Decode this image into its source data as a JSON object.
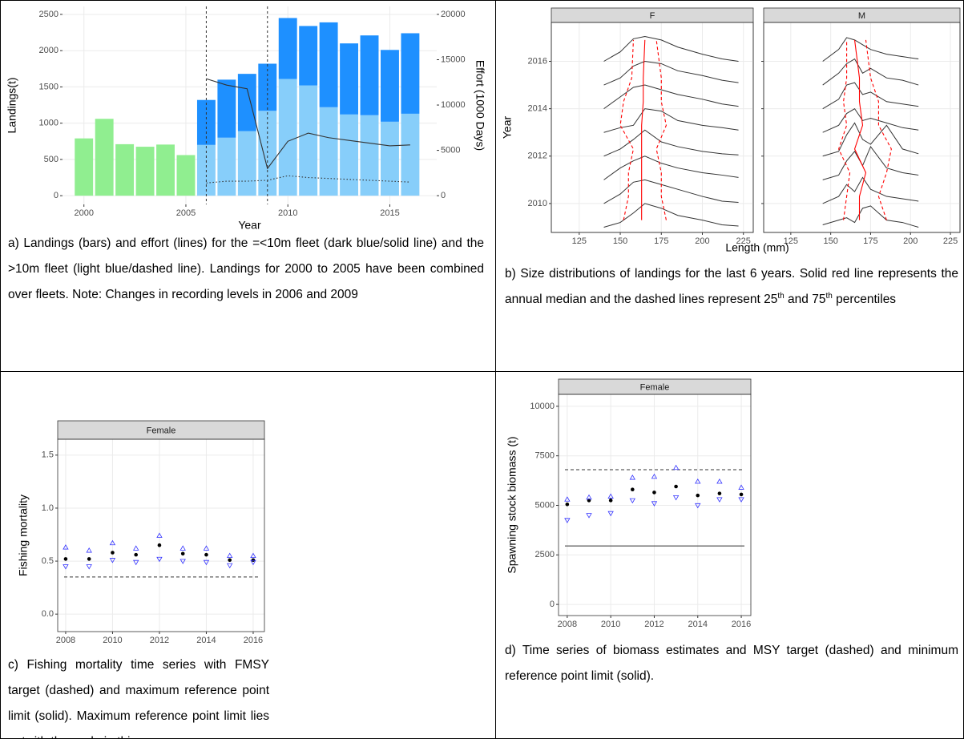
{
  "chart_data": [
    {
      "type": "combo",
      "x": [
        2000,
        2001,
        2002,
        2003,
        2004,
        2005,
        2006,
        2007,
        2008,
        2009,
        2010,
        2011,
        2012,
        2013,
        2014,
        2015,
        2016
      ],
      "xlim": [
        1998.95,
        2017.3
      ],
      "xticks": [
        2000,
        2005,
        2010,
        2015
      ],
      "ylim": [
        -120,
        2610
      ],
      "yticks": [
        0,
        500,
        1000,
        1500,
        2000,
        2500
      ],
      "y2lim": [
        -960,
        20880
      ],
      "y2ticks": [
        0,
        5000,
        10000,
        15000,
        20000
      ],
      "xlabel": "Year",
      "ylabel": "Landings(t)",
      "y2label": "Effort (1000 Days)",
      "grid": true,
      "vlines": [
        2006,
        2009
      ],
      "series": [
        {
          "type": "bar",
          "color": "#90ee90",
          "values": [
            790,
            1060,
            710,
            675,
            705,
            560,
            null,
            null,
            null,
            null,
            null,
            null,
            null,
            null,
            null,
            null,
            null
          ]
        },
        {
          "type": "bar",
          "color": "#87cefa",
          "values": [
            null,
            null,
            null,
            null,
            null,
            null,
            700,
            800,
            890,
            1170,
            1610,
            1520,
            1220,
            1120,
            1110,
            1020,
            1130
          ]
        },
        {
          "type": "bar",
          "color": "#1e90ff",
          "values": [
            null,
            null,
            null,
            null,
            null,
            null,
            620,
            800,
            790,
            650,
            840,
            820,
            1170,
            980,
            1100,
            990,
            1110
          ]
        },
        {
          "type": "line",
          "axis": "y2",
          "color": "#333333",
          "dash": "solid",
          "values": [
            null,
            null,
            null,
            null,
            null,
            null,
            12900,
            12200,
            11800,
            3000,
            6000,
            6900,
            6400,
            6100,
            5800,
            5500,
            5600
          ]
        },
        {
          "type": "line",
          "axis": "y2",
          "color": "#333333",
          "dash": "dotted",
          "values": [
            null,
            null,
            null,
            null,
            null,
            null,
            1400,
            1600,
            1600,
            1700,
            2200,
            2000,
            1900,
            1800,
            1700,
            1600,
            1500
          ]
        }
      ]
    },
    {
      "type": "ridgeline",
      "ylim": [
        2008.78,
        2017.64
      ],
      "yticks": [
        2010,
        2012,
        2014,
        2016
      ],
      "ylabel": "Year",
      "xlabel": "Length (mm)",
      "xlim": [
        108,
        231
      ],
      "grid": true,
      "facets": [
        {
          "label": "F",
          "xticks": [
            125,
            150,
            175,
            200,
            225
          ],
          "color": "#333333",
          "x": [
            140,
            150,
            158,
            165,
            175,
            185,
            200,
            212,
            222
          ],
          "series": [
            {
              "values": [
                2009.0,
                2009.2,
                2009.6,
                2010.0,
                2009.8,
                2009.5,
                2009.3,
                2009.1,
                2009.05
              ]
            },
            {
              "values": [
                2010.0,
                2010.4,
                2010.9,
                2011.0,
                2010.8,
                2010.6,
                2010.3,
                2010.1,
                2010.05
              ]
            },
            {
              "values": [
                2011.0,
                2011.5,
                2011.8,
                2012.0,
                2011.7,
                2011.5,
                2011.3,
                2011.2,
                2011.1
              ]
            },
            {
              "values": [
                2012.0,
                2012.3,
                2012.7,
                2013.1,
                2012.6,
                2012.4,
                2012.2,
                2012.1,
                2012.05
              ]
            },
            {
              "values": [
                2013.0,
                2013.2,
                2013.3,
                2014.0,
                2013.9,
                2013.5,
                2013.3,
                2013.2,
                2013.1
              ]
            },
            {
              "values": [
                2014.0,
                2014.5,
                2014.9,
                2015.0,
                2014.8,
                2014.6,
                2014.4,
                2014.2,
                2014.1
              ]
            },
            {
              "values": [
                2015.0,
                2015.3,
                2015.8,
                2016.0,
                2015.9,
                2015.6,
                2015.4,
                2015.2,
                2015.1
              ]
            },
            {
              "values": [
                2016.0,
                2016.4,
                2016.95,
                2017.05,
                2016.9,
                2016.6,
                2016.3,
                2016.1,
                2016.0
              ]
            }
          ],
          "ref_lines": [
            {
              "color": "#ff0000",
              "dash": "solid",
              "x": [
                163,
                163,
                163,
                163,
                163,
                164,
                164,
                165
              ],
              "values": [
                2009.3,
                2010.3,
                2011.3,
                2012.3,
                2013.3,
                2014.3,
                2015.3,
                2016.9
              ]
            },
            {
              "color": "#ff0000",
              "dash": "dashed",
              "x": [
                152,
                155,
                155,
                158,
                150,
                152,
                157,
                158
              ],
              "values": [
                2009.3,
                2010.3,
                2011.3,
                2012.3,
                2013.3,
                2014.3,
                2015.3,
                2016.9
              ]
            },
            {
              "color": "#ff0000",
              "dash": "dashed",
              "x": [
                178,
                175,
                175,
                172,
                178,
                175,
                175,
                172
              ],
              "values": [
                2009.3,
                2010.3,
                2011.3,
                2012.3,
                2013.3,
                2014.3,
                2015.3,
                2016.9
              ]
            }
          ]
        },
        {
          "label": "M",
          "xticks": [
            125,
            150,
            175,
            200,
            225
          ],
          "color": "#333333",
          "x": [
            145,
            155,
            160,
            165,
            170,
            175,
            185,
            195,
            205
          ],
          "series": [
            {
              "values": [
                2009.1,
                2009.3,
                2009.4,
                2009.2,
                2009.8,
                2009.9,
                2009.3,
                2009.2,
                2009.0
              ]
            },
            {
              "values": [
                2010.0,
                2010.3,
                2010.8,
                2010.5,
                2011.1,
                2010.6,
                2010.3,
                2010.2,
                2010.1
              ]
            },
            {
              "values": [
                2011.0,
                2011.2,
                2011.8,
                2012.2,
                2011.6,
                2012.4,
                2011.5,
                2011.3,
                2011.2
              ]
            },
            {
              "values": [
                2012.0,
                2012.2,
                2012.9,
                2013.4,
                2012.7,
                2012.5,
                2013.3,
                2012.3,
                2012.1
              ]
            },
            {
              "values": [
                2013.0,
                2013.3,
                2013.8,
                2014.0,
                2013.5,
                2013.6,
                2013.4,
                2013.2,
                2013.1
              ]
            },
            {
              "values": [
                2014.0,
                2014.4,
                2015.0,
                2015.1,
                2014.6,
                2014.7,
                2014.3,
                2014.2,
                2014.1
              ]
            },
            {
              "values": [
                2015.0,
                2015.5,
                2015.9,
                2016.1,
                2015.5,
                2015.7,
                2015.3,
                2015.2,
                2015.0
              ]
            },
            {
              "values": [
                2016.0,
                2016.5,
                2017.0,
                2016.9,
                2016.7,
                2016.5,
                2016.3,
                2016.2,
                2016.1
              ]
            }
          ],
          "ref_lines": [
            {
              "color": "#ff0000",
              "dash": "solid",
              "x": [
                168,
                168,
                172,
                165,
                170,
                168,
                168,
                165
              ],
              "values": [
                2009.3,
                2010.3,
                2011.3,
                2012.3,
                2013.3,
                2014.3,
                2015.3,
                2016.9
              ]
            },
            {
              "color": "#ff0000",
              "dash": "dashed",
              "x": [
                158,
                160,
                162,
                155,
                160,
                158,
                160,
                160
              ],
              "values": [
                2009.3,
                2010.3,
                2011.3,
                2012.3,
                2013.3,
                2014.3,
                2015.3,
                2016.9
              ]
            },
            {
              "color": "#ff0000",
              "dash": "dashed",
              "x": [
                185,
                180,
                185,
                188,
                180,
                180,
                175,
                172
              ],
              "values": [
                2009.3,
                2010.3,
                2011.3,
                2012.3,
                2013.3,
                2014.3,
                2015.3,
                2016.9
              ]
            }
          ]
        }
      ]
    },
    {
      "type": "scatter",
      "strip": "Female",
      "ylabel": "Fishing mortality",
      "grid": true,
      "x": [
        2008,
        2009,
        2010,
        2011,
        2012,
        2013,
        2014,
        2015,
        2016
      ],
      "xlim": [
        2007.66,
        2016.48
      ],
      "xticks": [
        2008,
        2010,
        2012,
        2014,
        2016
      ],
      "ylim": [
        -0.165,
        1.65
      ],
      "yticks": [
        {
          "value": 0,
          "label": "0.0"
        },
        0.5,
        {
          "value": 1,
          "label": "1.0"
        },
        1.5
      ],
      "hlines": [
        {
          "value": 0.35,
          "dash": "dashed"
        }
      ],
      "series": [
        {
          "marker": "circle",
          "color": "#000000",
          "values": [
            0.52,
            0.52,
            0.58,
            0.56,
            0.65,
            0.57,
            0.56,
            0.51,
            0.51
          ]
        },
        {
          "marker": "triangle-up",
          "color": "#3333ff",
          "values": [
            0.63,
            0.6,
            0.67,
            0.62,
            0.74,
            0.62,
            0.62,
            0.55,
            0.55
          ]
        },
        {
          "marker": "triangle-down",
          "color": "#3333ff",
          "values": [
            0.45,
            0.45,
            0.51,
            0.49,
            0.52,
            0.5,
            0.49,
            0.46,
            0.49
          ]
        }
      ]
    },
    {
      "type": "scatter",
      "strip": "Female",
      "ylabel": "Spawning stock biomass (t)",
      "grid": true,
      "x": [
        2008,
        2009,
        2010,
        2011,
        2012,
        2013,
        2014,
        2015,
        2016
      ],
      "xlim": [
        2007.6,
        2016.44
      ],
      "xticks": [
        2008,
        2010,
        2012,
        2014,
        2016
      ],
      "ylim": [
        -562,
        10602
      ],
      "yticks": [
        0,
        2500,
        5000,
        7500,
        10000
      ],
      "hlines": [
        {
          "value": 6800,
          "dash": "dashed"
        },
        {
          "value": 2950,
          "dash": "solid"
        }
      ],
      "series": [
        {
          "marker": "circle",
          "color": "#000000",
          "values": [
            5050,
            5250,
            5250,
            5800,
            5650,
            5950,
            5500,
            5600,
            5550
          ]
        },
        {
          "marker": "triangle-up",
          "color": "#3333ff",
          "values": [
            5300,
            5400,
            5450,
            6400,
            6450,
            6900,
            6200,
            6200,
            5900
          ]
        },
        {
          "marker": "triangle-down",
          "color": "#3333ff",
          "values": [
            4250,
            4500,
            4600,
            5250,
            5100,
            5400,
            5000,
            5300,
            5300
          ]
        }
      ]
    }
  ],
  "captions": [
    "a)  Landings (bars) and effort (lines) for the =<10m fleet (dark blue/solid line) and the >10m fleet (light blue/dashed line). Landings for 2000 to 2005 have been combined over fleets. Note: Changes in recording levels in 2006 and 2009",
    [
      "b) Size distributions of landings for the last 6 years. Solid red line represents the annual median and the dashed lines represent 25",
      "th",
      " and 75",
      "th",
      " percentiles"
    ],
    "c) Fishing mortality time series with FMSY target (dashed) and maximum reference point limit (solid).  Maximum reference point limit lies outwith the scale in this case.",
    "d)  Time series of biomass estimates and MSY target (dashed) and minimum reference point limit (solid)."
  ]
}
